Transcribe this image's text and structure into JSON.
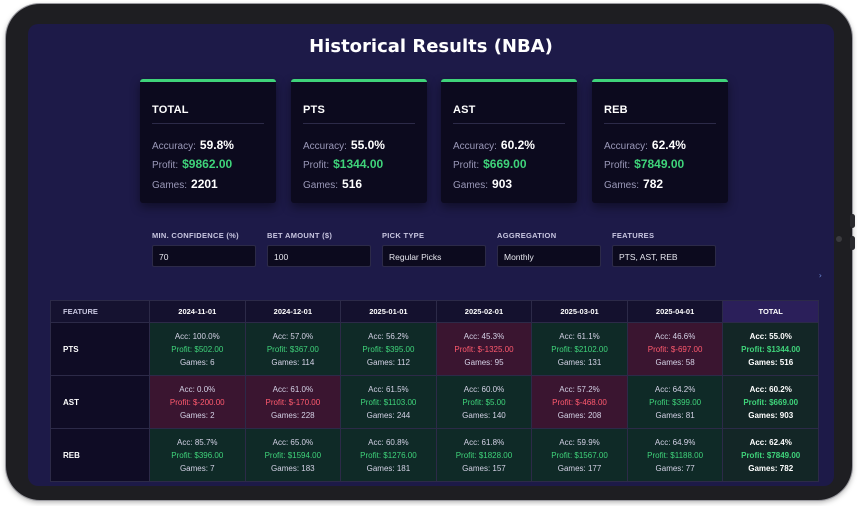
{
  "page": {
    "title": "Historical Results (NBA)"
  },
  "summary_cards": [
    {
      "title": "TOTAL",
      "accuracy": "59.8%",
      "profit": "$9862.00",
      "games": "2201"
    },
    {
      "title": "PTS",
      "accuracy": "55.0%",
      "profit": "$1344.00",
      "games": "516"
    },
    {
      "title": "AST",
      "accuracy": "60.2%",
      "profit": "$669.00",
      "games": "903"
    },
    {
      "title": "REB",
      "accuracy": "62.4%",
      "profit": "$7849.00",
      "games": "782"
    }
  ],
  "card_labels": {
    "accuracy": "Accuracy:",
    "profit": "Profit:",
    "games": "Games:"
  },
  "filters": [
    {
      "label": "MIN. CONFIDENCE (%)",
      "value": "70"
    },
    {
      "label": "BET AMOUNT ($)",
      "value": "100"
    },
    {
      "label": "PICK TYPE",
      "value": "Regular Picks"
    },
    {
      "label": "AGGREGATION",
      "value": "Monthly"
    },
    {
      "label": "FEATURES",
      "value": "PTS, AST, REB"
    }
  ],
  "table": {
    "header_feature": "FEATURE",
    "periods": [
      "2024-11-01",
      "2024-12-01",
      "2025-01-01",
      "2025-02-01",
      "2025-03-01",
      "2025-04-01"
    ],
    "header_total": "TOTAL",
    "rows": [
      {
        "feature": "PTS",
        "cells": [
          {
            "acc": "Acc: 100.0%",
            "profit": "Profit: $502.00",
            "games": "Games: 6",
            "positive": true
          },
          {
            "acc": "Acc: 57.0%",
            "profit": "Profit: $367.00",
            "games": "Games: 114",
            "positive": true
          },
          {
            "acc": "Acc: 56.2%",
            "profit": "Profit: $395.00",
            "games": "Games: 112",
            "positive": true
          },
          {
            "acc": "Acc: 45.3%",
            "profit": "Profit: $-1325.00",
            "games": "Games: 95",
            "positive": false
          },
          {
            "acc": "Acc: 61.1%",
            "profit": "Profit: $2102.00",
            "games": "Games: 131",
            "positive": true
          },
          {
            "acc": "Acc: 46.6%",
            "profit": "Profit: $-697.00",
            "games": "Games: 58",
            "positive": false
          }
        ],
        "total": {
          "acc": "Acc: 55.0%",
          "profit": "Profit: $1344.00",
          "games": "Games: 516"
        }
      },
      {
        "feature": "AST",
        "cells": [
          {
            "acc": "Acc: 0.0%",
            "profit": "Profit: $-200.00",
            "games": "Games: 2",
            "positive": false
          },
          {
            "acc": "Acc: 61.0%",
            "profit": "Profit: $-170.00",
            "games": "Games: 228",
            "positive": false
          },
          {
            "acc": "Acc: 61.5%",
            "profit": "Profit: $1103.00",
            "games": "Games: 244",
            "positive": true
          },
          {
            "acc": "Acc: 60.0%",
            "profit": "Profit: $5.00",
            "games": "Games: 140",
            "positive": true
          },
          {
            "acc": "Acc: 57.2%",
            "profit": "Profit: $-468.00",
            "games": "Games: 208",
            "positive": false
          },
          {
            "acc": "Acc: 64.2%",
            "profit": "Profit: $399.00",
            "games": "Games: 81",
            "positive": true
          }
        ],
        "total": {
          "acc": "Acc: 60.2%",
          "profit": "Profit: $669.00",
          "games": "Games: 903"
        }
      },
      {
        "feature": "REB",
        "cells": [
          {
            "acc": "Acc: 85.7%",
            "profit": "Profit: $396.00",
            "games": "Games: 7",
            "positive": true
          },
          {
            "acc": "Acc: 65.0%",
            "profit": "Profit: $1594.00",
            "games": "Games: 183",
            "positive": true
          },
          {
            "acc": "Acc: 60.8%",
            "profit": "Profit: $1276.00",
            "games": "Games: 181",
            "positive": true
          },
          {
            "acc": "Acc: 61.8%",
            "profit": "Profit: $1828.00",
            "games": "Games: 157",
            "positive": true
          },
          {
            "acc": "Acc: 59.9%",
            "profit": "Profit: $1567.00",
            "games": "Games: 177",
            "positive": true
          },
          {
            "acc": "Acc: 64.9%",
            "profit": "Profit: $1188.00",
            "games": "Games: 77",
            "positive": true
          }
        ],
        "total": {
          "acc": "Acc: 62.4%",
          "profit": "Profit: $7849.00",
          "games": "Games: 782"
        }
      }
    ]
  },
  "colors": {
    "accent": "#3fd37a",
    "negative": "#ff5a6e",
    "background": "#1d1a48"
  },
  "icons": {
    "side": "chevron-right-icon"
  }
}
